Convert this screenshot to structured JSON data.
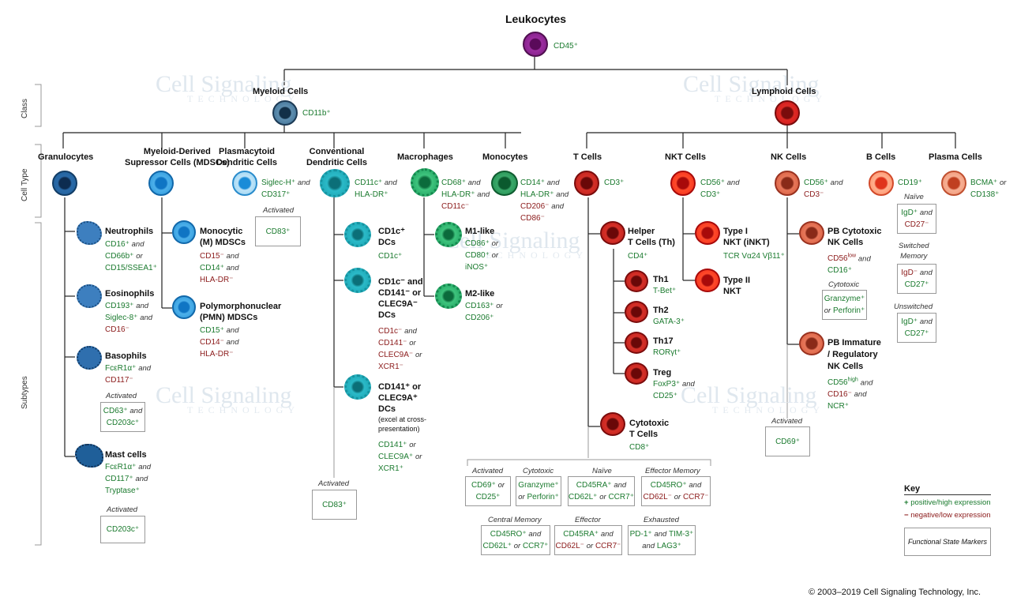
{
  "title": "Leukocytes",
  "root_marker": "CD45⁺",
  "side_labels": {
    "class": "Class",
    "cell_type": "Cell Type",
    "subtypes": "Subtypes"
  },
  "watermark": {
    "line1": "Cell Signaling",
    "line2": "TECHNOLOGY"
  },
  "myeloid": {
    "name": "Myeloid Cells",
    "marker": "CD11b⁺"
  },
  "lymphoid": {
    "name": "Lymphoid Cells"
  },
  "granulocytes": {
    "name": "Granulocytes",
    "neutrophils": {
      "name": "Neutrophils",
      "m1": "CD16⁺",
      "c1": "and",
      "m2": "CD66b⁺",
      "c2": "or",
      "m3": "CD15/SSEA1⁺"
    },
    "eosinophils": {
      "name": "Eosinophils",
      "m1": "CD193⁺",
      "c1": "and",
      "m2": "Siglec-8⁺",
      "c2": "and",
      "m3": "CD16⁻"
    },
    "basophils": {
      "name": "Basophils",
      "m1": "FcεR1α⁺",
      "c1": "and",
      "m2": "CD117⁻",
      "state": "Activated",
      "box1": "CD63⁺",
      "box_c": "and",
      "box2": "CD203c⁺"
    },
    "mast": {
      "name": "Mast cells",
      "m1": "FcεR1α⁺",
      "c1": "and",
      "m2": "CD117⁺",
      "c2": "and",
      "m3": "Tryptase⁺",
      "state": "Activated",
      "box": "CD203c⁺"
    }
  },
  "mdsc": {
    "name1": "Myeloid-Derived",
    "name2": "Supressor Cells (MDSCs)",
    "monocytic": {
      "n1": "Monocytic",
      "n2": "(M) MDSCs",
      "m1": "CD15⁻",
      "c1": "and",
      "m2": "CD14⁺",
      "c2": "and",
      "m3": "HLA-DR⁻"
    },
    "pmn": {
      "n1": "Polymorphonuclear",
      "n2": "(PMN) MDSCs",
      "m1": "CD15⁺",
      "c1": "and",
      "m2": "CD14⁻",
      "c2": "and",
      "m3": "HLA-DR⁻"
    }
  },
  "pdc": {
    "name1": "Plasmacytoid",
    "name2": "Dendritic Cells",
    "m1": "Siglec-H⁺",
    "c1": "and",
    "m2": "CD317⁺",
    "state": "Activated",
    "box": "CD83⁺"
  },
  "cdc": {
    "name1": "Conventional",
    "name2": "Dendritic Cells",
    "m1": "CD11c⁺",
    "c1": "and",
    "m2": "HLA-DR⁺",
    "cd1c": {
      "n1": "CD1c⁺",
      "n2": "DCs",
      "m1": "CD1c⁺"
    },
    "cd141neg": {
      "n1": "CD1c⁻ and",
      "n2": "CD141⁻ or",
      "n3": "CLEC9A⁻",
      "n4": "DCs",
      "m1": "CD1c⁻",
      "c1": "and",
      "m2": "CD141⁻",
      "c2": "or",
      "m3": "CLEC9A⁻",
      "c3": "or",
      "m4": "XCR1⁻"
    },
    "cd141pos": {
      "n1": "CD141⁺ or",
      "n2": "CLEC9A⁺",
      "n3": "DCs",
      "note1": "(excel at cross-",
      "note2": "presentation)",
      "m1": "CD141⁺",
      "c1": "or",
      "m2": "CLEC9A⁺",
      "c2": "or",
      "m3": "XCR1⁺"
    },
    "state": "Activated",
    "box": "CD83⁺"
  },
  "macrophages": {
    "name": "Macrophages",
    "m1": "CD68⁺",
    "c1": "and",
    "m2": "HLA-DR⁺",
    "c2": "and",
    "m3": "CD11c⁻",
    "m1like": {
      "name": "M1-like",
      "m1": "CD86⁺",
      "c1": "or",
      "m2": "CD80⁺",
      "c2": "or",
      "m3": "iNOS⁺"
    },
    "m2like": {
      "name": "M2-like",
      "m1": "CD163⁺",
      "c1": "or",
      "m2": "CD206⁺"
    }
  },
  "monocytes": {
    "name": "Monocytes",
    "m1": "CD14⁺",
    "c1": "and",
    "m2": "HLA-DR⁺",
    "c2": "and",
    "m3": "CD206⁻",
    "c3": "and",
    "m4": "CD86⁻"
  },
  "tcells": {
    "name": "T Cells",
    "marker": "CD3⁺",
    "helper": {
      "n1": "Helper",
      "n2": "T Cells (Th)",
      "m1": "CD4⁺"
    },
    "th1": {
      "name": "Th1",
      "m1": "T-Bet⁺"
    },
    "th2": {
      "name": "Th2",
      "m1": "GATA-3⁺"
    },
    "th17": {
      "name": "Th17",
      "m1": "RORγt⁺"
    },
    "treg": {
      "name": "Treg",
      "m1": "FoxP3⁺",
      "c1": "and",
      "m2": "CD25⁺"
    },
    "cytotoxic": {
      "n1": "Cytotoxic",
      "n2": "T Cells",
      "m1": "CD8⁺"
    }
  },
  "t_states": [
    {
      "label": "Activated",
      "a": "CD69⁺",
      "ac": "or",
      "b": "CD25⁺"
    },
    {
      "label": "Cytotoxic",
      "a": "Granzyme⁺",
      "ac": "",
      "bc": "or",
      "b": "Perforin⁺"
    },
    {
      "label": "Naïve",
      "a": "CD45RA⁺",
      "ac": "and",
      "b": "CD62L⁺",
      "bc2": "or",
      "b2": "CCR7⁺"
    },
    {
      "label": "Effector Memory",
      "a": "CD45RO⁺",
      "ac": "and",
      "b": "CD62L⁻",
      "bc2": "or",
      "b2": "CCR7⁻"
    },
    {
      "label": "Central Memory",
      "a": "CD45RO⁺",
      "ac": "and",
      "b": "CD62L⁺",
      "bc2": "or",
      "b2": "CCR7⁺"
    },
    {
      "label": "Effector",
      "a": "CD45RA⁺",
      "ac": "and",
      "b": "CD62L⁻",
      "bc2": "or",
      "b2": "CCR7⁻"
    },
    {
      "label": "Exhausted",
      "a": "PD-1⁺",
      "ac": "and",
      "a2": "TIM-3⁺",
      "bc": "and",
      "b": "LAG3⁺"
    }
  ],
  "nkt": {
    "name": "NKT Cells",
    "m1": "CD56⁺",
    "c1": "and",
    "m2": "CD3⁺",
    "type1": {
      "n1": "Type I",
      "n2": "NKT (iNKT)",
      "m1": "TCR Vα24 Vβ11⁺"
    },
    "type2": {
      "n1": "Type II",
      "n2": "NKT"
    }
  },
  "nk": {
    "name": "NK Cells",
    "m1": "CD56⁺",
    "c1": "and",
    "m2": "CD3⁻",
    "pbcyto": {
      "n1": "PB Cytotoxic",
      "n2": "NK Cells",
      "m1": "CD56",
      "m1sup": "low",
      "c1": "and",
      "m2": "CD16⁺",
      "state": "Cytotoxic",
      "box1": "Granzyme⁺",
      "box_c": "or",
      "box2": "Perforin⁺"
    },
    "pbimm": {
      "n1": "PB Immature",
      "n2": "/ Regulatory",
      "n3": "NK Cells",
      "m1": "CD56",
      "m1sup": "high",
      "c1": "and",
      "m2": "CD16⁻",
      "c2": "and",
      "m3": "NCR⁺"
    },
    "state": "Activated",
    "box": "CD69⁺"
  },
  "bcells": {
    "name": "B Cells",
    "marker": "CD19⁺",
    "naive": {
      "label": "Naïve",
      "a": "IgD⁺",
      "ac": "and",
      "b": "CD27⁻"
    },
    "switched": {
      "label1": "Switched",
      "label2": "Memory",
      "a": "IgD⁻",
      "ac": "and",
      "b": "CD27⁺"
    },
    "unswitched": {
      "label": "Unswitched",
      "a": "IgD⁺",
      "ac": "and",
      "b": "CD27⁺"
    }
  },
  "plasma": {
    "name": "Plasma Cells",
    "m1": "BCMA⁺",
    "c1": "or",
    "m2": "CD138⁺"
  },
  "key": {
    "title": "Key",
    "pos_sym": "+",
    "pos": "positive/high expression",
    "neg_sym": "−",
    "neg": "negative/low expression",
    "box": "Functional State Markers"
  },
  "copyright": "© 2003–2019 Cell Signaling Technology, Inc.",
  "colors": {
    "line": "#1a1a1a",
    "green": "#1a7a2e",
    "red": "#8b1a1a",
    "myeloid_blue": "#1f5f99",
    "lymph_red": "#c8161d"
  }
}
